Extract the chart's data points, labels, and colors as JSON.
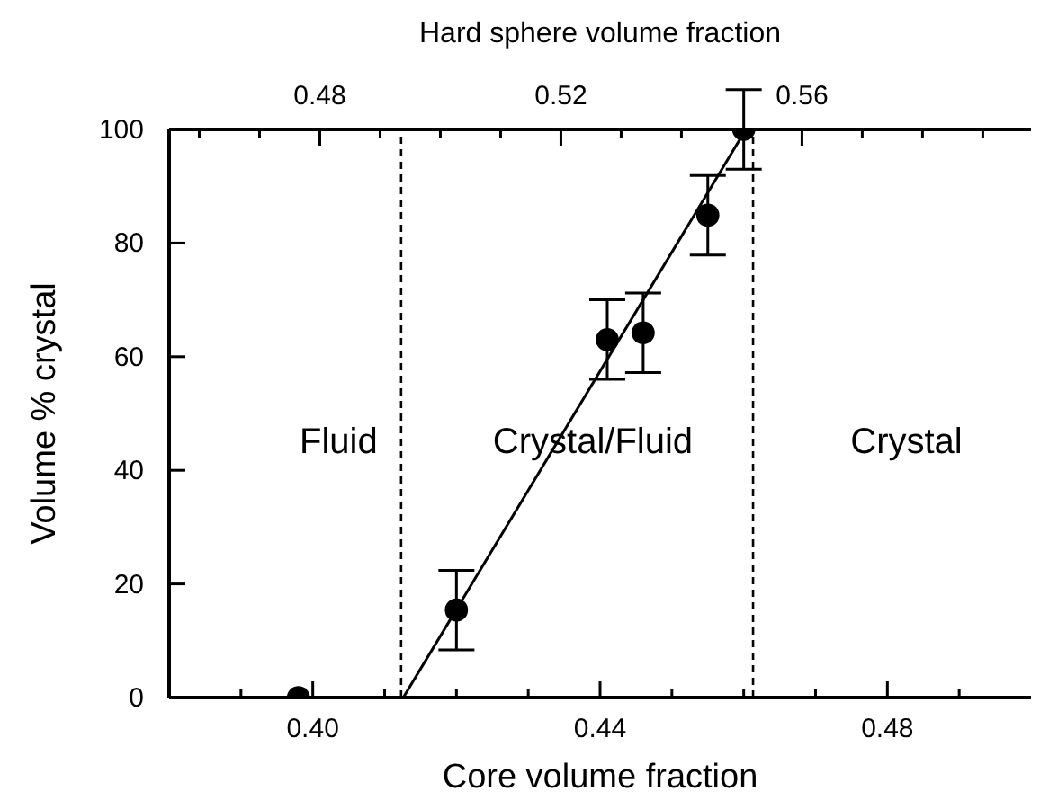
{
  "chart_data": {
    "type": "scatter",
    "xlabel": "Core volume fraction",
    "ylabel": "Volume % crystal",
    "x2label": "Hard sphere volume fraction",
    "xlim": [
      0.38,
      0.5
    ],
    "xticks": [
      {
        "value": 0.39,
        "label": null
      },
      {
        "value": 0.4,
        "label": "0.40"
      },
      {
        "value": 0.41,
        "label": null
      },
      {
        "value": 0.42,
        "label": null
      },
      {
        "value": 0.43,
        "label": null
      },
      0.44,
      {
        "value": 0.45,
        "label": null
      },
      {
        "value": 0.46,
        "label": null
      },
      {
        "value": 0.47,
        "label": null
      },
      0.48,
      {
        "value": 0.49,
        "label": null
      }
    ],
    "x2lim": [
      0.455,
      0.598
    ],
    "x2ticks": [
      {
        "value": 0.46,
        "label": null
      },
      {
        "value": 0.47,
        "label": null
      },
      0.48,
      {
        "value": 0.49,
        "label": null
      },
      {
        "value": 0.5,
        "label": null
      },
      {
        "value": 0.51,
        "label": null
      },
      0.52,
      {
        "value": 0.53,
        "label": null
      },
      {
        "value": 0.54,
        "label": null
      },
      {
        "value": 0.55,
        "label": null
      },
      0.56,
      {
        "value": 0.57,
        "label": null
      },
      {
        "value": 0.58,
        "label": null
      },
      {
        "value": 0.59,
        "label": null
      }
    ],
    "ylim": [
      0,
      100
    ],
    "yticks": [
      0,
      20,
      40,
      60,
      80,
      100
    ],
    "grid": false,
    "legend": false,
    "marker": "circle",
    "series": [
      {
        "type": "scatter",
        "color": "#000000",
        "x": [
          0.398,
          0.42,
          0.441,
          0.446,
          0.455,
          0.46
        ],
        "values": [
          0,
          15.4,
          63,
          64.2,
          84.9,
          100
        ],
        "errors": [
          null,
          7,
          7,
          7,
          7,
          7
        ]
      },
      {
        "type": "line",
        "color": "#000000",
        "x": [
          0.4126,
          0.4603
        ],
        "values": [
          0,
          100
        ],
        "marker": "none",
        "line_style": "solid"
      }
    ],
    "ref_lines": [
      {
        "axis": "x",
        "value": 0.4123,
        "line_style": "dashed",
        "color": "#000000"
      },
      {
        "axis": "x",
        "value": 0.4613,
        "line_style": "dashed",
        "color": "#000000"
      }
    ],
    "annotations": [
      "Fluid",
      "Crystal/Fluid",
      "Crystal"
    ]
  }
}
